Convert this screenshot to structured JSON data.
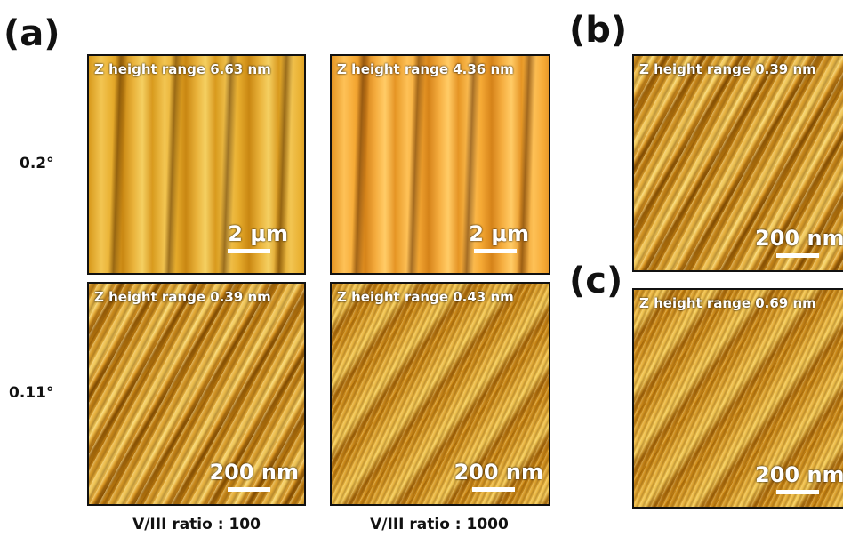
{
  "panel_a": {
    "label": "(a)",
    "row_labels": [
      "0.2°",
      "0.11°"
    ],
    "column_labels": [
      "V/III ratio : 100",
      "V/III ratio : 1000"
    ],
    "images": [
      {
        "z_range": "Z height range 6.63 nm",
        "scale_bar": "2 μm"
      },
      {
        "z_range": "Z height range 4.36 nm",
        "scale_bar": "2 μm"
      },
      {
        "z_range": "Z height range 0.39 nm",
        "scale_bar": "200 nm"
      },
      {
        "z_range": "Z height range 0.43 nm",
        "scale_bar": "200 nm"
      }
    ]
  },
  "panel_b": {
    "label": "(b)",
    "image": {
      "z_range": "Z height range 0.39 nm",
      "scale_bar": "200 nm"
    }
  },
  "panel_c": {
    "label": "(c)",
    "image": {
      "z_range": "Z height range 0.69 nm",
      "scale_bar": "200 nm"
    }
  }
}
